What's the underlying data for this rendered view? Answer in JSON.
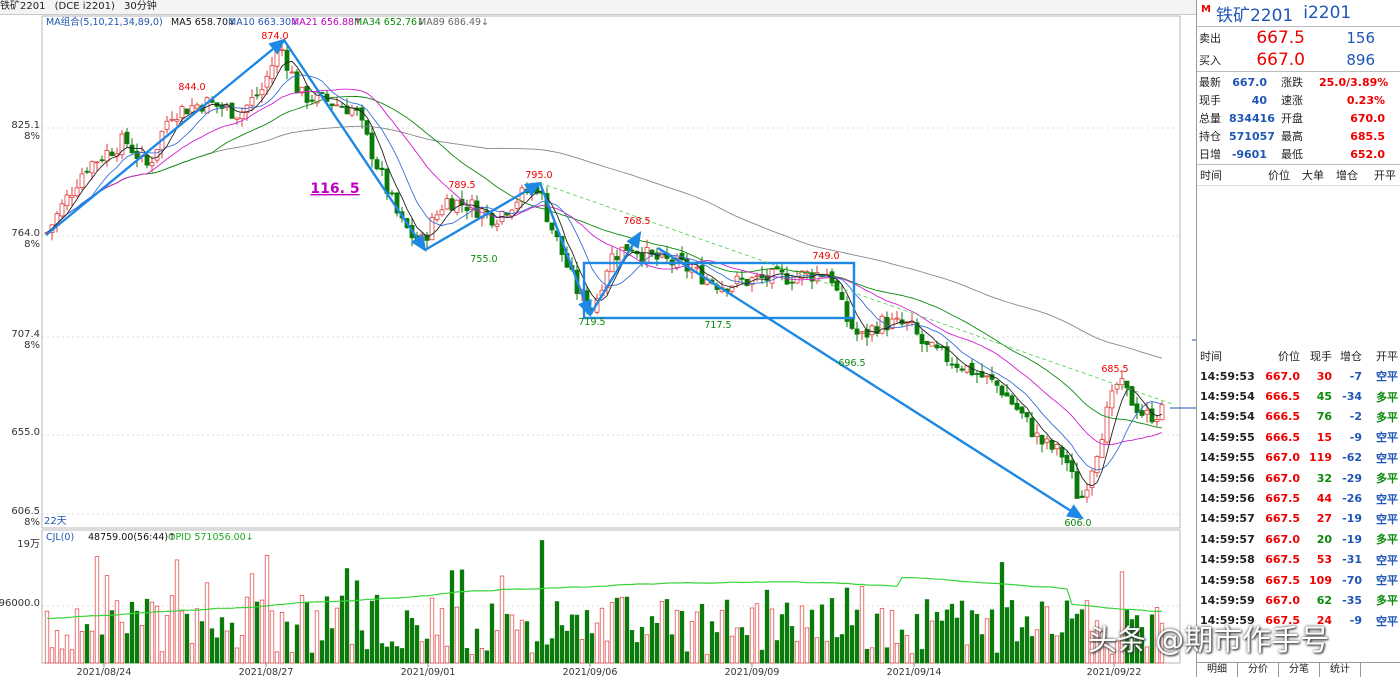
{
  "titlebar": {
    "name": "铁矿2201",
    "exchange": "(DCE i2201)",
    "period": "30分钟"
  },
  "ma_line": {
    "label": "MA组合(5,10,21,34,89,0)",
    "ma5": "MA5 658.70↓",
    "ma10": "MA10 663.30↓",
    "ma21": "MA21 656.88↑",
    "ma34": "MA34 652.76↓",
    "ma89": "MA89 686.49↓"
  },
  "vol_line": {
    "label": "CJL(0)",
    "values": "48759.00(56:44)↑",
    "opi": "OPID 571056.00↓"
  },
  "price_axis": [
    {
      "price": "825.1",
      "pct": "8%",
      "y": 122
    },
    {
      "price": "764.0",
      "pct": "8%",
      "y": 230
    },
    {
      "price": "707.4",
      "pct": "8%",
      "y": 331
    },
    {
      "price": "655.0",
      "pct": "",
      "y": 429
    },
    {
      "price": "606.5",
      "pct": "8%",
      "y": 508
    }
  ],
  "vol_axis": [
    {
      "label": "19万",
      "y": 544
    },
    {
      "label": "96000.0",
      "y": 603
    }
  ],
  "days_label": "22天",
  "dates": [
    "2021/08/24",
    "2021/08/27",
    "2021/09/01",
    "2021/09/06",
    "2021/09/09",
    "2021/09/14",
    "2021/09/22"
  ],
  "annotations": [
    "874.0",
    "844.0",
    "789.5",
    "795.0",
    "755.0",
    "768.5",
    "719.5",
    "717.5",
    "749.0",
    "696.5",
    "685.5",
    "606.0"
  ],
  "marker_text": "116. 5",
  "watermark": "头条 @期市作手号",
  "colors": {
    "up": "#e23b3b",
    "down": "#0a7a0a",
    "ma5": "#222222",
    "ma10": "#3a6fd8",
    "ma21": "#d020d0",
    "ma34": "#0a8a0a",
    "ma89": "#888888",
    "arrow": "#1e88e5",
    "opi": "#39d439"
  },
  "side": {
    "marker": "M",
    "name": "铁矿2201",
    "code": "i2201",
    "ask": {
      "label": "卖出",
      "price": "667.5",
      "vol": "156"
    },
    "bid": {
      "label": "买入",
      "price": "667.0",
      "vol": "896"
    },
    "stats": [
      {
        "l1": "最新",
        "v1": "667.0",
        "l2": "涨跌",
        "v2": "25.0/3.89%"
      },
      {
        "l1": "现手",
        "v1": "40",
        "l2": "速涨",
        "v2": "0.23%"
      },
      {
        "l1": "总量",
        "v1": "834416",
        "l2": "开盘",
        "v2": "670.0"
      },
      {
        "l1": "持仓",
        "v1": "571057",
        "l2": "最高",
        "v2": "685.5"
      },
      {
        "l1": "日增",
        "v1": "-9601",
        "l2": "最低",
        "v2": "652.0"
      }
    ],
    "deal_header": [
      "时间",
      "价位",
      "大单",
      "增仓",
      "开平"
    ],
    "tick_header": [
      "时间",
      "价位",
      "现手",
      "增仓",
      "开平"
    ],
    "ticks": [
      [
        "14:59:53",
        "667.0",
        "30",
        "-7",
        "空平"
      ],
      [
        "14:59:54",
        "666.5",
        "45",
        "-34",
        "多平"
      ],
      [
        "14:59:54",
        "666.5",
        "76",
        "-2",
        "多平"
      ],
      [
        "14:59:55",
        "666.5",
        "15",
        "-9",
        "空平"
      ],
      [
        "14:59:55",
        "667.0",
        "119",
        "-62",
        "空平"
      ],
      [
        "14:59:56",
        "667.0",
        "32",
        "-29",
        "多平"
      ],
      [
        "14:59:56",
        "667.5",
        "44",
        "-26",
        "空平"
      ],
      [
        "14:59:57",
        "667.5",
        "27",
        "-19",
        "空平"
      ],
      [
        "14:59:57",
        "667.0",
        "20",
        "-19",
        "多平"
      ],
      [
        "14:59:58",
        "667.5",
        "53",
        "-31",
        "空平"
      ],
      [
        "14:59:58",
        "667.5",
        "109",
        "-70",
        "空平"
      ],
      [
        "14:59:59",
        "667.0",
        "62",
        "-35",
        "多平"
      ],
      [
        "14:59:59",
        "667.5",
        "24",
        "-9",
        "空平"
      ]
    ],
    "tabs": [
      "明细",
      "分价",
      "分笔",
      "统计"
    ]
  }
}
